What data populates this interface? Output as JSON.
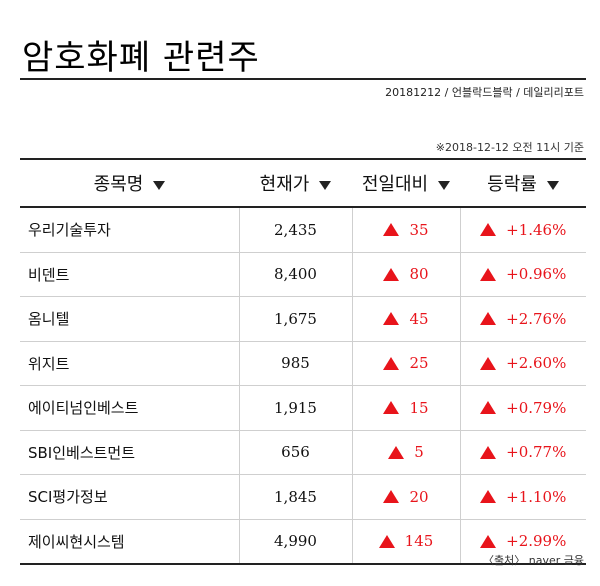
{
  "header": {
    "title": "암호화폐 관련주",
    "byline": "20181212 / 언블락드블락 / 데일리리포트",
    "note": "※2018-12-12 오전 11시 기준"
  },
  "table": {
    "columns": [
      "종목명",
      "현재가",
      "전일대비",
      "등락률"
    ],
    "rows": [
      {
        "name": "우리기술투자",
        "price": "2,435",
        "change": "35",
        "rate": "+1.46%"
      },
      {
        "name": "비덴트",
        "price": "8,400",
        "change": "80",
        "rate": "+0.96%"
      },
      {
        "name": "옴니텔",
        "price": "1,675",
        "change": "45",
        "rate": "+2.76%"
      },
      {
        "name": "위지트",
        "price": "985",
        "change": "25",
        "rate": "+2.60%"
      },
      {
        "name": "에이티넘인베스트",
        "price": "1,915",
        "change": "15",
        "rate": "+0.79%"
      },
      {
        "name": "SBI인베스트먼트",
        "price": "656",
        "change": "5",
        "rate": "+0.77%"
      },
      {
        "name": "SCI평가정보",
        "price": "1,845",
        "change": "20",
        "rate": "+1.10%"
      },
      {
        "name": "제이씨현시스템",
        "price": "4,990",
        "change": "145",
        "rate": "+2.99%"
      }
    ]
  },
  "footer": {
    "source": "〈출처〉 naver 금융"
  },
  "colors": {
    "up": "#e8141b",
    "rule": "#222222"
  },
  "icons": {
    "sort": "triangle-down-icon",
    "up": "triangle-up-icon"
  }
}
